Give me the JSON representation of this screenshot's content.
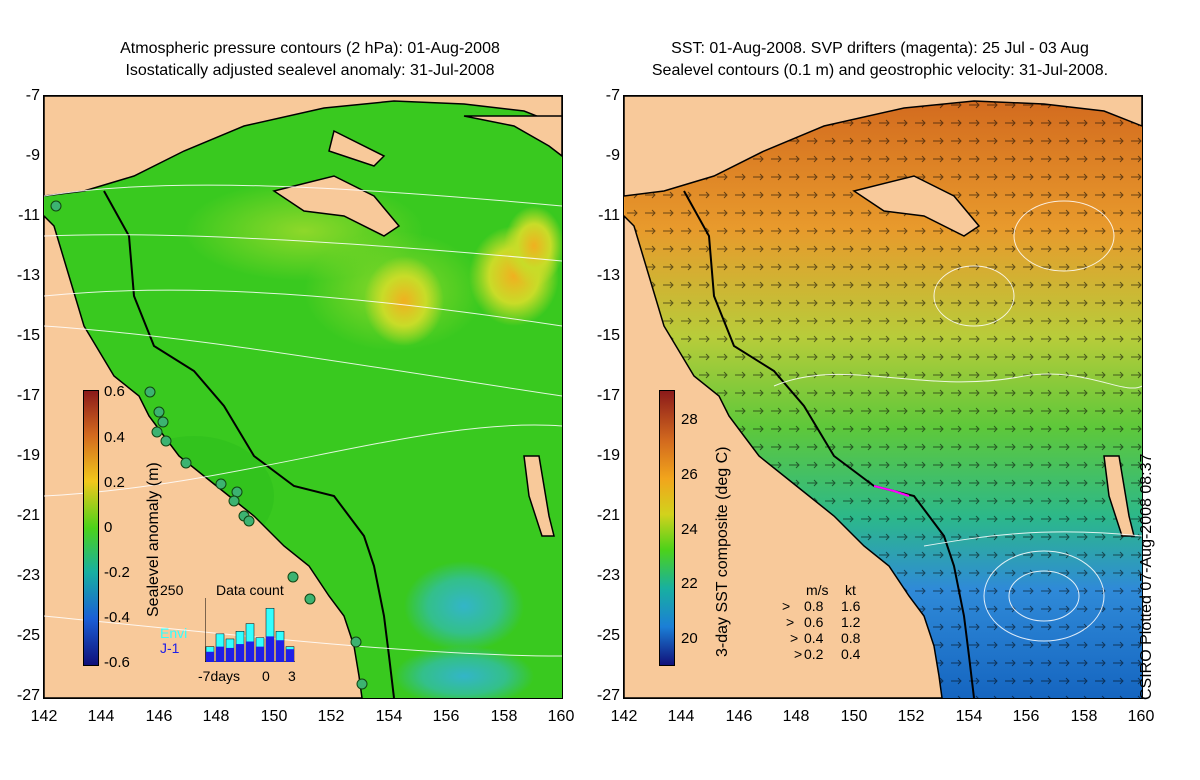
{
  "left_panel": {
    "title_line1": "Atmospheric pressure contours (2 hPa): 01-Aug-2008",
    "title_line2": "Isostatically adjusted sealevel anomaly: 31-Jul-2008",
    "colorbar_label": "Sealevel anomaly (m)",
    "colorbar_ticks": [
      "0.6",
      "0.4",
      "0.2",
      "0",
      "-0.2",
      "-0.4",
      "-0.6"
    ],
    "inset": {
      "title": "Data count",
      "ymax": "250",
      "legend_envi": "Envi",
      "legend_j1": "J-1",
      "x_left": "-7days",
      "x_zero": "0",
      "x_right": "3",
      "envi_counts": [
        60,
        110,
        90,
        120,
        150,
        95,
        210,
        120,
        60
      ],
      "j1_counts": [
        40,
        60,
        55,
        70,
        80,
        60,
        100,
        85,
        50
      ]
    }
  },
  "right_panel": {
    "title_line1": "SST: 01-Aug-2008. SVP drifters (magenta): 25 Jul - 03 Aug",
    "title_line2": "Sealevel contours (0.1 m) and geostrophic velocity: 31-Jul-2008.",
    "colorbar_label": "3-day SST composite (deg C)",
    "colorbar_ticks": [
      "28",
      "26",
      "24",
      "22",
      "20"
    ],
    "velocity_legend": {
      "header_ms": "m/s",
      "header_kt": "kt",
      "rows": [
        {
          "ms": "0.8",
          "kt": "1.6"
        },
        {
          "ms": "0.6",
          "kt": "1.2"
        },
        {
          "ms": "0.4",
          "kt": "0.8"
        },
        {
          "ms": "0.2",
          "kt": "0.4"
        }
      ]
    }
  },
  "axes": {
    "lat_ticks": [
      "-7",
      "-9",
      "-11",
      "-13",
      "-15",
      "-17",
      "-19",
      "-21",
      "-23",
      "-25",
      "-27"
    ],
    "lon_ticks": [
      "142",
      "144",
      "146",
      "148",
      "150",
      "152",
      "154",
      "156",
      "158",
      "160"
    ],
    "lat_range": [
      -27,
      -7
    ],
    "lon_range": [
      142,
      160
    ]
  },
  "credit": "CSIRO Plotted 07-Aug-2008 08:37",
  "colors": {
    "land": "#f8c99a",
    "coast": "#000000",
    "contour": "#ffffff",
    "sla_mid": "#2ecb1c",
    "tide_gauge": "#3cb371",
    "sst_warm": "#d2691e",
    "sst_cool": "#1565c0"
  }
}
